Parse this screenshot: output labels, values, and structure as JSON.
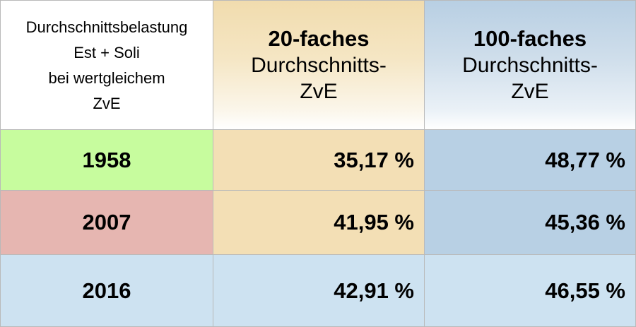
{
  "colors": {
    "green_year": "#c7fc9e",
    "red_year": "#e6b6b1",
    "light_blue_row": "#cde2f1",
    "tan_column": "#f3dfb5",
    "blue_column": "#b8d0e4"
  },
  "header": {
    "corner": {
      "line1": "Durchschnittsbelastung",
      "line2": "Est + Soli",
      "line3": "bei wertgleichem",
      "line4": "ZvE"
    },
    "col1": {
      "bold": "20-faches",
      "line2": "Durchschnitts-",
      "line3": "ZvE"
    },
    "col2": {
      "bold": "100-faches",
      "line2": "Durchschnitts-",
      "line3": "ZvE"
    }
  },
  "rows": [
    {
      "year": "1958",
      "col1": "35,17 %",
      "col2": "48,77 %"
    },
    {
      "year": "2007",
      "col1": "41,95 %",
      "col2": "45,36 %"
    },
    {
      "year": "2016",
      "col1": "42,91 %",
      "col2": "46,55 %"
    }
  ]
}
